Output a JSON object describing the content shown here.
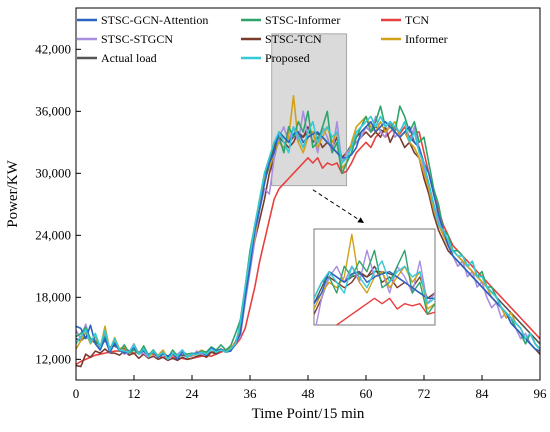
{
  "chart_data": {
    "type": "line",
    "xlabel": "Time Point/15 min",
    "ylabel": "Power/KW",
    "xlim": [
      0,
      96
    ],
    "ylim": [
      10000,
      46000
    ],
    "xticks": [
      0,
      12,
      24,
      36,
      48,
      60,
      72,
      84,
      96
    ],
    "xtick_labels": [
      "0",
      "12",
      "24",
      "36",
      "48",
      "60",
      "72",
      "84",
      "96"
    ],
    "yticks": [
      12000,
      18000,
      24000,
      30000,
      36000,
      42000
    ],
    "ytick_labels": [
      "12,000",
      "18,000",
      "24,000",
      "30,000",
      "36,000",
      "42,000"
    ],
    "grid": false,
    "legend_position": "top",
    "series": [
      {
        "name": "STSC-GCN-Attention",
        "color": "#2a63c4",
        "values": [
          15200,
          15000,
          14000,
          15300,
          13500,
          12900,
          14000,
          12700,
          13500,
          12900,
          12600,
          12800,
          13100,
          12600,
          12800,
          12400,
          12700,
          12200,
          12500,
          12300,
          12600,
          12000,
          12700,
          12200,
          12500,
          12600,
          12700,
          12400,
          13100,
          12800,
          13000,
          12700,
          12800,
          13500,
          14500,
          18000,
          21000,
          24500,
          26500,
          29000,
          31000,
          32000,
          34000,
          33500,
          33000,
          33800,
          34000,
          33000,
          33500,
          33800,
          34000,
          33500,
          33000,
          32500,
          32000,
          31500,
          31500,
          31800,
          32500,
          34000,
          34500,
          35000,
          34000,
          34500,
          35000,
          34500,
          34000,
          33500,
          34000,
          34500,
          33000,
          32500,
          31000,
          30000,
          28000,
          26000,
          24500,
          23000,
          22000,
          21500,
          21000,
          20500,
          20000,
          19500,
          19000,
          18500,
          18000,
          17500,
          17000,
          16500,
          15500,
          15000,
          14500,
          14000,
          13500,
          13000,
          12800
        ]
      },
      {
        "name": "STSC-Informer",
        "color": "#2ea36a",
        "values": [
          14200,
          14500,
          15100,
          14000,
          13800,
          13300,
          14200,
          13000,
          13600,
          12800,
          13400,
          12600,
          12900,
          12500,
          13300,
          12400,
          12900,
          12300,
          12600,
          12100,
          12900,
          12300,
          12700,
          12500,
          12600,
          12500,
          12800,
          12700,
          13200,
          12900,
          13400,
          12900,
          13300,
          14500,
          15800,
          19000,
          22500,
          25000,
          27500,
          30000,
          31500,
          33000,
          33500,
          32000,
          34500,
          33500,
          35000,
          34000,
          36000,
          32500,
          33000,
          34500,
          36000,
          32000,
          33000,
          30000,
          31000,
          32000,
          33500,
          34500,
          35500,
          34000,
          35000,
          36500,
          34500,
          35000,
          34000,
          36500,
          35500,
          34000,
          35000,
          33000,
          33500,
          31000,
          28500,
          27000,
          24500,
          24000,
          22500,
          22500,
          22000,
          21000,
          21500,
          20000,
          20500,
          19000,
          19000,
          18000,
          17000,
          16500,
          16000,
          15000,
          14500,
          13500,
          14500,
          13500,
          13000
        ]
      },
      {
        "name": "TCN",
        "color": "#e8403f",
        "values": [
          11500,
          11800,
          12000,
          12200,
          12400,
          12500,
          12600,
          12700,
          12800,
          12800,
          12900,
          12700,
          12600,
          12700,
          12500,
          12400,
          12500,
          12300,
          12200,
          12300,
          12200,
          12100,
          12100,
          12000,
          12100,
          12200,
          12300,
          12400,
          12300,
          12500,
          12700,
          12900,
          13100,
          13400,
          14000,
          15000,
          17000,
          19000,
          21500,
          23500,
          25500,
          27500,
          28500,
          29000,
          29500,
          30000,
          30500,
          31000,
          31500,
          31000,
          31500,
          30500,
          31000,
          30800,
          31000,
          30000,
          30200,
          31000,
          32000,
          32500,
          33000,
          32500,
          33500,
          34000,
          33500,
          34000,
          34500,
          33800,
          34500,
          33500,
          34000,
          34000,
          32000,
          30000,
          28000,
          26500,
          25000,
          24000,
          23000,
          22500,
          22000,
          21500,
          21000,
          20500,
          20000,
          19500,
          19000,
          18500,
          18000,
          17500,
          17000,
          16500,
          16000,
          15500,
          15000,
          14500,
          14000
        ]
      },
      {
        "name": "STSC-STGCN",
        "color": "#a98de0",
        "values": [
          14800,
          14000,
          15400,
          13800,
          14200,
          12900,
          14600,
          12600,
          13900,
          12900,
          12500,
          12700,
          13500,
          12500,
          12600,
          12200,
          12900,
          12200,
          12700,
          12100,
          12400,
          12500,
          12900,
          12300,
          12300,
          12800,
          12500,
          12400,
          13000,
          12700,
          12900,
          12700,
          12900,
          13600,
          14200,
          17500,
          20500,
          23500,
          26500,
          28500,
          28000,
          31500,
          33500,
          34500,
          33000,
          34500,
          33000,
          36000,
          33500,
          34000,
          32000,
          34500,
          33500,
          32000,
          35000,
          31000,
          32000,
          32500,
          33000,
          33500,
          34500,
          34000,
          35500,
          34000,
          33500,
          35000,
          33500,
          34000,
          35000,
          33000,
          34500,
          32500,
          30500,
          29000,
          27000,
          25500,
          24000,
          23500,
          22000,
          21000,
          21500,
          20000,
          20500,
          19000,
          19500,
          18000,
          17000,
          17500,
          16000,
          16500,
          15500,
          15000,
          14000,
          14500,
          13500,
          13000,
          12800
        ]
      },
      {
        "name": "STSC-TCN",
        "color": "#7a3b2e",
        "values": [
          11400,
          11300,
          12500,
          12200,
          12800,
          12600,
          13000,
          12600,
          12600,
          12400,
          12800,
          12400,
          12600,
          12100,
          12500,
          12100,
          12300,
          12000,
          12200,
          11900,
          12100,
          11900,
          12200,
          12000,
          12100,
          12300,
          12400,
          12200,
          12700,
          12500,
          12900,
          12700,
          13000,
          13700,
          15000,
          18500,
          21000,
          23500,
          25500,
          27500,
          30000,
          31500,
          33500,
          33000,
          32500,
          33000,
          34000,
          33500,
          34500,
          33000,
          33500,
          32500,
          33000,
          32500,
          33500,
          31500,
          32000,
          32500,
          33000,
          33500,
          34000,
          33500,
          34000,
          33500,
          34500,
          33000,
          34000,
          33500,
          32500,
          33000,
          32000,
          31500,
          29500,
          28000,
          26000,
          24500,
          23500,
          22500,
          22000,
          21500,
          21000,
          20500,
          20000,
          19500,
          19000,
          18500,
          18000,
          17500,
          17000,
          16500,
          16000,
          15000,
          14500,
          14000,
          13500,
          13000,
          12500
        ]
      },
      {
        "name": "Informer",
        "color": "#d4a017",
        "values": [
          13000,
          13800,
          14600,
          13500,
          14200,
          13100,
          15200,
          12900,
          14100,
          13000,
          13200,
          12700,
          13400,
          12600,
          13000,
          12300,
          12600,
          12400,
          12900,
          12100,
          12500,
          12300,
          12800,
          12200,
          12400,
          12600,
          12900,
          12600,
          13100,
          12800,
          13000,
          12800,
          13100,
          13600,
          14800,
          18500,
          21500,
          24000,
          27000,
          29500,
          30500,
          32000,
          33000,
          32500,
          33500,
          37500,
          33000,
          32000,
          33500,
          34000,
          32500,
          33500,
          34500,
          33000,
          34000,
          30500,
          31000,
          33000,
          34500,
          35000,
          35500,
          34500,
          34000,
          35000,
          34000,
          34500,
          35000,
          33500,
          34000,
          33000,
          32500,
          31500,
          30000,
          28500,
          26500,
          25000,
          24000,
          23000,
          22500,
          22000,
          21500,
          21000,
          20500,
          20000,
          19500,
          19000,
          18000,
          17500,
          17000,
          16000,
          16500,
          15500,
          15000,
          14000,
          14500,
          13500,
          13000
        ]
      },
      {
        "name": "Actual load",
        "color": "#555555",
        "values": [
          14000,
          13800,
          14200,
          13900,
          13600,
          13400,
          13800,
          13200,
          13300,
          13000,
          13100,
          12800,
          12900,
          12700,
          12800,
          12500,
          12600,
          12400,
          12500,
          12300,
          12400,
          12300,
          12400,
          12300,
          12400,
          12500,
          12600,
          12500,
          12700,
          12700,
          12800,
          12800,
          12900,
          13400,
          14600,
          18000,
          21000,
          24000,
          27000,
          29500,
          31000,
          32500,
          34000,
          33500,
          33000,
          33500,
          33800,
          33500,
          34000,
          34000,
          33800,
          33500,
          33000,
          32500,
          32000,
          31500,
          32000,
          32800,
          33500,
          34000,
          34500,
          34000,
          34500,
          34200,
          34000,
          34500,
          34000,
          33500,
          34000,
          33500,
          33000,
          32500,
          30500,
          29000,
          27000,
          25500,
          24000,
          23000,
          22500,
          22000,
          21500,
          21000,
          20500,
          20000,
          19500,
          19000,
          18500,
          18000,
          17500,
          17000,
          16500,
          16000,
          15500,
          15000,
          14500,
          14000,
          13500
        ]
      },
      {
        "name": "Proposed",
        "color": "#33c9d6",
        "values": [
          13500,
          14200,
          14900,
          13600,
          14500,
          13200,
          14800,
          12900,
          14000,
          12900,
          12800,
          12700,
          13400,
          12500,
          13000,
          12300,
          12800,
          12300,
          12700,
          12000,
          12600,
          12300,
          12900,
          12200,
          12500,
          12500,
          12700,
          12500,
          13000,
          12700,
          12900,
          12700,
          13000,
          13500,
          15500,
          19000,
          22000,
          25000,
          27500,
          30000,
          31500,
          33000,
          34000,
          33000,
          32000,
          34500,
          33500,
          32500,
          34000,
          35000,
          33000,
          34000,
          34500,
          33500,
          34000,
          31000,
          31500,
          32500,
          34000,
          34500,
          35000,
          35500,
          34500,
          35500,
          34500,
          35000,
          34500,
          34000,
          35000,
          33000,
          34000,
          32000,
          31000,
          29000,
          27000,
          25000,
          24500,
          23500,
          22500,
          22000,
          22000,
          21000,
          21500,
          20000,
          20000,
          19000,
          18500,
          18000,
          17000,
          16500,
          16000,
          15500,
          15000,
          14000,
          14500,
          13500,
          13000
        ]
      }
    ]
  }
}
